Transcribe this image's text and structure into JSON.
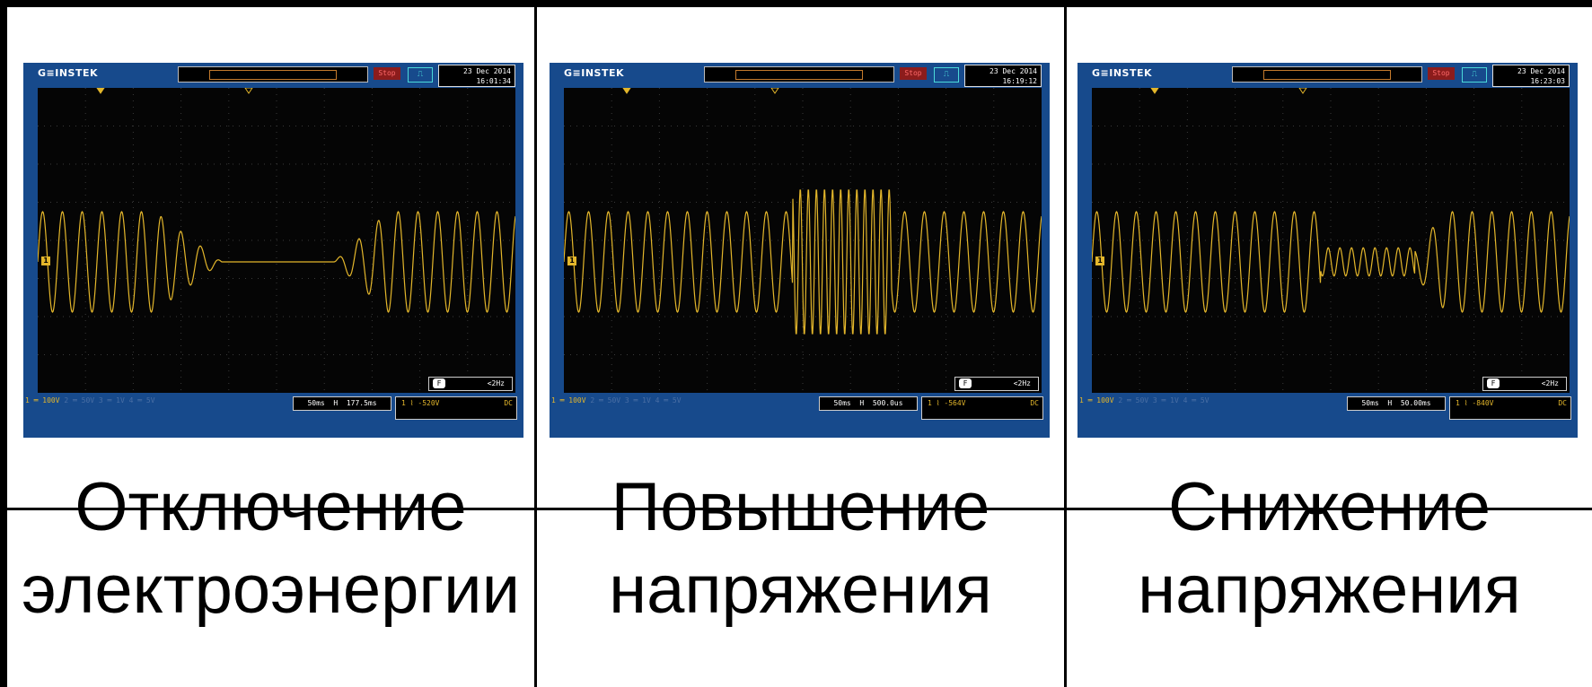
{
  "panels": [
    {
      "brand": "G≡INSTEK",
      "stop_label": "Stop",
      "date": "23 Dec 2014",
      "time": "16:01:34",
      "freq_label": "<2Hz",
      "ch1_scale": "1 ═ 100V",
      "other_channels": "2 ═ 50V   3 ═ 1V   4 ═ 5V",
      "timebase": "50ms",
      "h_pos": "177.5ms",
      "trigger_level": "-520V",
      "coupling": "DC",
      "caption_line1": "Отключение",
      "caption_line2": "электроэнергии",
      "waveform_event": "outage"
    },
    {
      "brand": "G≡INSTEK",
      "stop_label": "Stop",
      "date": "23 Dec 2014",
      "time": "16:19:12",
      "freq_label": "<2Hz",
      "ch1_scale": "1 ═ 100V",
      "other_channels": "2 ═ 50V   3 ═ 1V   4 ═ 5V",
      "timebase": "50ms",
      "h_pos": "500.0us",
      "trigger_level": "-564V",
      "coupling": "DC",
      "caption_line1": "Повышение",
      "caption_line2": "напряжения",
      "waveform_event": "swell"
    },
    {
      "brand": "G≡INSTEK",
      "stop_label": "Stop",
      "date": "23 Dec 2014",
      "time": "16:23:03",
      "freq_label": "<2Hz",
      "ch1_scale": "1 ═ 100V",
      "other_channels": "2 ═ 50V   3 ═ 1V   4 ═ 5V",
      "timebase": "50ms",
      "h_pos": "50.00ms",
      "trigger_level": "-840V",
      "coupling": "DC",
      "caption_line1": "Снижение",
      "caption_line2": "напряжения",
      "waveform_event": "sag"
    }
  ],
  "colors": {
    "scope_bezel": "#174a8c",
    "trace": "#e3b62b",
    "screen": "#050505"
  }
}
